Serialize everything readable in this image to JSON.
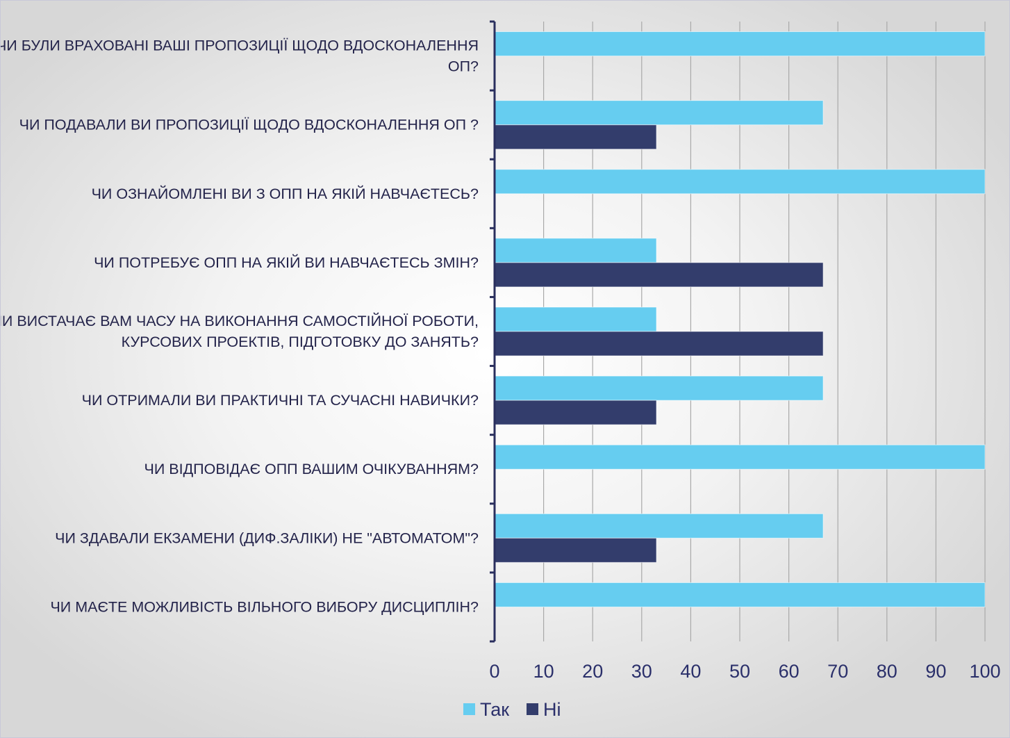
{
  "chart_data": {
    "type": "bar",
    "orientation": "horizontal",
    "categories": [
      "ЧИ БУЛИ ВРАХОВАНІ ВАШІ ПРОПОЗИЦІЇ  ЩОДО ВДОСКОНАЛЕННЯ ОП?",
      "ЧИ ПОДАВАЛИ ВИ ПРОПОЗИЦІЇ ЩОДО ВДОСКОНАЛЕННЯ ОП ?",
      "ЧИ ОЗНАЙОМЛЕНІ ВИ З ОПП НА ЯКІЙ НАВЧАЄТЕСЬ?",
      "ЧИ ПОТРЕБУЄ ОПП НА ЯКІЙ ВИ НАВЧАЄТЕСЬ ЗМІН?",
      "ЧИ ВИСТАЧАЄ ВАМ ЧАСУ НА ВИКОНАННЯ САМОСТІЙНОЇ РОБОТИ, КУРСОВИХ ПРОЕКТІВ, ПІДГОТОВКУ ДО ЗАНЯТЬ?",
      "ЧИ ОТРИМАЛИ ВИ ПРАКТИЧНІ ТА СУЧАСНІ НАВИЧКИ?",
      "ЧИ ВІДПОВІДАЄ ОПП ВАШИМ ОЧІКУВАННЯМ?",
      "ЧИ ЗДАВАЛИ ЕКЗАМЕНИ (ДИФ.ЗАЛІКИ) НЕ \"АВТОМАТОМ\"?",
      "ЧИ МАЄТЕ МОЖЛИВІСТЬ ВІЛЬНОГО ВИБОРУ ДИСЦИПЛІН?"
    ],
    "category_lines": [
      [
        "ЧИ БУЛИ ВРАХОВАНІ ВАШІ ПРОПОЗИЦІЇ  ЩОДО ВДОСКОНАЛЕННЯ",
        "ОП?"
      ],
      [
        "ЧИ ПОДАВАЛИ ВИ ПРОПОЗИЦІЇ ЩОДО ВДОСКОНАЛЕННЯ ОП ?"
      ],
      [
        "ЧИ ОЗНАЙОМЛЕНІ ВИ З ОПП НА ЯКІЙ НАВЧАЄТЕСЬ?"
      ],
      [
        "ЧИ ПОТРЕБУЄ ОПП НА ЯКІЙ ВИ НАВЧАЄТЕСЬ ЗМІН?"
      ],
      [
        "ЧИ ВИСТАЧАЄ ВАМ ЧАСУ НА ВИКОНАННЯ САМОСТІЙНОЇ РОБОТИ,",
        "КУРСОВИХ ПРОЕКТІВ, ПІДГОТОВКУ ДО ЗАНЯТЬ?"
      ],
      [
        "ЧИ ОТРИМАЛИ ВИ ПРАКТИЧНІ ТА СУЧАСНІ НАВИЧКИ?"
      ],
      [
        "ЧИ ВІДПОВІДАЄ ОПП ВАШИМ ОЧІКУВАННЯМ?"
      ],
      [
        "ЧИ ЗДАВАЛИ ЕКЗАМЕНИ (ДИФ.ЗАЛІКИ) НЕ \"АВТОМАТОМ\"?"
      ],
      [
        "ЧИ МАЄТЕ МОЖЛИВІСТЬ ВІЛЬНОГО ВИБОРУ ДИСЦИПЛІН?"
      ]
    ],
    "series": [
      {
        "name": "Так",
        "color": "#66cdf0",
        "values": [
          100,
          67,
          100,
          33,
          33,
          67,
          100,
          67,
          100
        ]
      },
      {
        "name": "Ні",
        "color": "#333d6c",
        "values": [
          0,
          33,
          0,
          67,
          67,
          33,
          0,
          33,
          0
        ]
      }
    ],
    "xlim": [
      0,
      100
    ],
    "xticks": [
      0,
      10,
      20,
      30,
      40,
      50,
      60,
      70,
      80,
      90,
      100
    ],
    "grid": true,
    "legend_position": "bottom",
    "title": "",
    "xlabel": "",
    "ylabel": ""
  }
}
